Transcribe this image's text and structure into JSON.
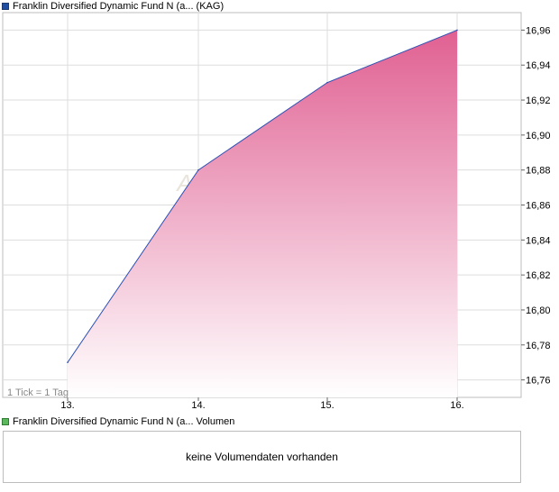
{
  "legend_price": {
    "label": "Franklin Diversified Dynamic Fund N (a... (KAG)",
    "color": "#1f4fa3"
  },
  "legend_volume": {
    "label": "Franklin Diversified Dynamic Fund N (a... Volumen",
    "color": "#5cb85c"
  },
  "tick_note": "1 Tick = 1 Tag",
  "watermark": "A",
  "volume_panel": {
    "message": "keine Volumendaten vorhanden"
  },
  "chart_data": {
    "type": "area",
    "x": [
      "13.",
      "14.",
      "15.",
      "16."
    ],
    "values": [
      16.77,
      16.88,
      16.93,
      16.96
    ],
    "y_ticks": [
      "16,76",
      "16,78",
      "16,80",
      "16,82",
      "16,84",
      "16,86",
      "16,88",
      "16,90",
      "16,92",
      "16,94",
      "16,96"
    ],
    "ylim": [
      16.75,
      16.97
    ],
    "y_axis_position": "right",
    "grid": true,
    "line_color": "#2b50b5",
    "fill_top_color": "#e06092",
    "fill_bottom_color": "#ffffff"
  }
}
